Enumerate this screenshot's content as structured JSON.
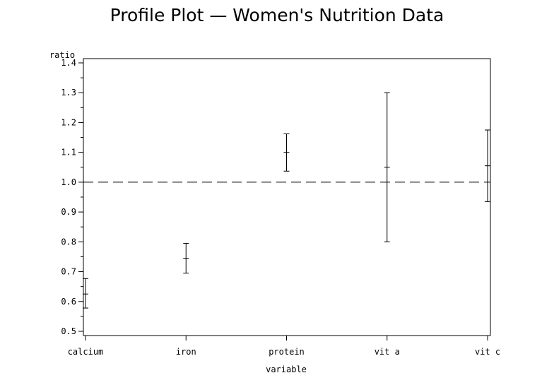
{
  "chart_data": {
    "type": "errorbar",
    "title": "Profile Plot — Women's Nutrition Data",
    "xlabel": "variable",
    "ylabel": "ratio",
    "ylim": [
      0.5,
      1.4
    ],
    "yticks": [
      "0.5",
      "0.6",
      "0.7",
      "0.8",
      "0.9",
      "1.0",
      "1.1",
      "1.2",
      "1.3",
      "1.4"
    ],
    "categories": [
      "calcium",
      "iron",
      "protein",
      "vit a",
      "vit c"
    ],
    "mean": [
      0.625,
      0.745,
      1.1,
      1.05,
      1.055
    ],
    "lower": [
      0.578,
      0.695,
      1.037,
      0.8,
      0.935
    ],
    "upper": [
      0.677,
      0.795,
      1.162,
      1.3,
      1.175
    ],
    "reference_line": 1.0,
    "reference_style": "dashed",
    "grid": false
  }
}
